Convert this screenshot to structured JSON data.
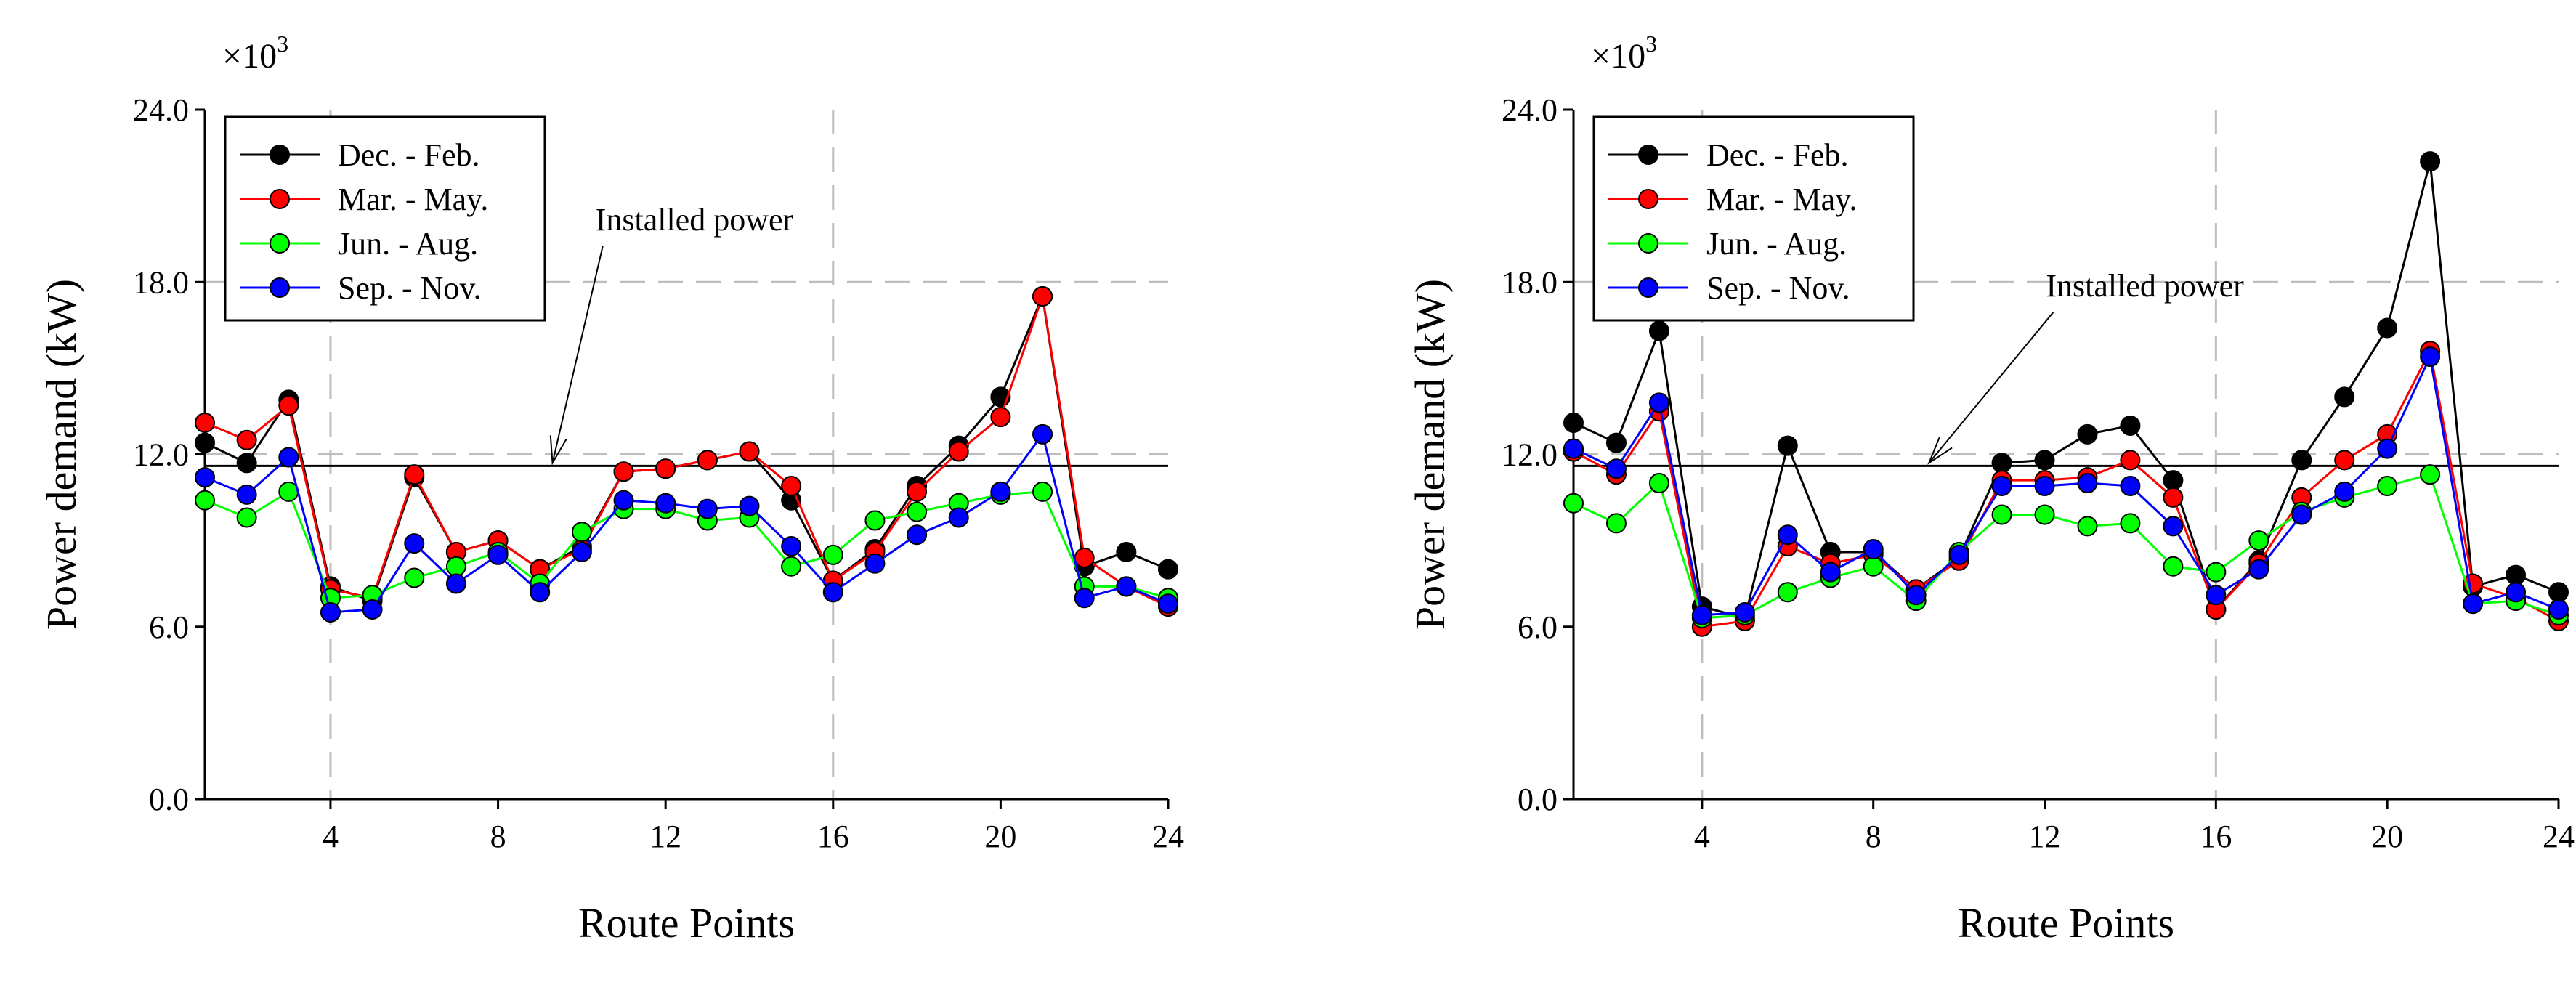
{
  "chart_data": [
    {
      "type": "line",
      "xlabel": "Route Points",
      "ylabel": "Power demand (kW)",
      "y_multiplier": "×10",
      "y_multiplier_exp": "3",
      "xlim": [
        1,
        24
      ],
      "ylim": [
        0,
        24
      ],
      "xticks": [
        4,
        8,
        12,
        16,
        20,
        24
      ],
      "yticks": [
        0.0,
        6.0,
        12.0,
        18.0,
        24.0
      ],
      "ytick_labels": [
        "0.0",
        "6.0",
        "12.0",
        "18.0",
        "24.0"
      ],
      "xtick_labels": [
        "4",
        "8",
        "12",
        "16",
        "20",
        "24"
      ],
      "grid": {
        "vertical_dashed_at": [
          4,
          16
        ],
        "horizontal_dashed_at": [
          12,
          18
        ]
      },
      "legend_position": "top-left",
      "installed_power": 11.6,
      "annotation": {
        "text": "Installed power",
        "points_to_x": 9.3,
        "text_x": 10.5,
        "text_y": 19.6
      },
      "x": [
        1,
        2,
        3,
        4,
        5,
        6,
        7,
        8,
        9,
        10,
        11,
        12,
        13,
        14,
        15,
        16,
        17,
        18,
        19,
        20,
        21,
        22,
        23,
        24
      ],
      "series": [
        {
          "name": "Dec. - Feb.",
          "color": "#000000",
          "values": [
            12.4,
            11.7,
            13.9,
            7.4,
            6.9,
            11.2,
            8.6,
            9.0,
            8.0,
            8.8,
            11.4,
            11.5,
            11.8,
            12.1,
            10.4,
            7.6,
            8.7,
            10.9,
            12.3,
            14.0,
            17.5,
            8.1,
            8.6,
            8.0
          ]
        },
        {
          "name": "Mar. - May.",
          "color": "#ff0000",
          "values": [
            13.1,
            12.5,
            13.7,
            7.3,
            7.0,
            11.3,
            8.6,
            9.0,
            8.0,
            8.7,
            11.4,
            11.5,
            11.8,
            12.1,
            10.9,
            7.6,
            8.6,
            10.7,
            12.1,
            13.3,
            17.5,
            8.4,
            7.4,
            6.7
          ]
        },
        {
          "name": "Jun. - Aug.",
          "color": "#00ff00",
          "values": [
            10.4,
            9.8,
            10.7,
            7.0,
            7.1,
            7.7,
            8.1,
            8.6,
            7.5,
            9.3,
            10.1,
            10.1,
            9.7,
            9.8,
            8.1,
            8.5,
            9.7,
            10.0,
            10.3,
            10.6,
            10.7,
            7.4,
            7.4,
            7.0
          ]
        },
        {
          "name": "Sep. - Nov.",
          "color": "#0000ff",
          "values": [
            11.2,
            10.6,
            11.9,
            6.5,
            6.6,
            8.9,
            7.5,
            8.5,
            7.2,
            8.6,
            10.4,
            10.3,
            10.1,
            10.2,
            8.8,
            7.2,
            8.2,
            9.2,
            9.8,
            10.7,
            12.7,
            7.0,
            7.4,
            6.8
          ]
        }
      ]
    },
    {
      "type": "line",
      "xlabel": "Route Points",
      "ylabel": "Power demand (kW)",
      "y_multiplier": "×10",
      "y_multiplier_exp": "3",
      "xlim": [
        1,
        24
      ],
      "ylim": [
        0,
        24
      ],
      "xticks": [
        4,
        8,
        12,
        16,
        20,
        24
      ],
      "yticks": [
        0.0,
        6.0,
        12.0,
        18.0,
        24.0
      ],
      "ytick_labels": [
        "0.0",
        "6.0",
        "12.0",
        "18.0",
        "24.0"
      ],
      "xtick_labels": [
        "4",
        "8",
        "12",
        "16",
        "20",
        "24"
      ],
      "grid": {
        "vertical_dashed_at": [
          4,
          16
        ],
        "horizontal_dashed_at": [
          12,
          18
        ]
      },
      "legend_position": "top-left",
      "installed_power": 11.6,
      "annotation": {
        "text": "Installed power",
        "points_to_x": 9.3,
        "text_x": 12.2,
        "text_y": 17.3
      },
      "x": [
        1,
        2,
        3,
        4,
        5,
        6,
        7,
        8,
        9,
        10,
        11,
        12,
        13,
        14,
        15,
        16,
        17,
        18,
        19,
        20,
        21,
        22,
        23,
        24
      ],
      "series": [
        {
          "name": "Dec. - Feb.",
          "color": "#000000",
          "values": [
            13.1,
            12.4,
            16.3,
            6.7,
            6.3,
            12.3,
            8.6,
            8.6,
            7.3,
            8.4,
            11.7,
            11.8,
            12.7,
            13.0,
            11.1,
            6.6,
            8.3,
            11.8,
            14.0,
            16.4,
            22.2,
            7.4,
            7.8,
            7.2
          ]
        },
        {
          "name": "Mar. - May.",
          "color": "#ff0000",
          "values": [
            12.1,
            11.3,
            13.5,
            6.0,
            6.2,
            8.8,
            8.2,
            8.5,
            7.3,
            8.3,
            11.1,
            11.1,
            11.2,
            11.8,
            10.5,
            6.6,
            8.2,
            10.5,
            11.8,
            12.7,
            15.6,
            7.5,
            7.0,
            6.2
          ]
        },
        {
          "name": "Jun. - Aug.",
          "color": "#00ff00",
          "values": [
            10.3,
            9.6,
            11.0,
            6.3,
            6.4,
            7.2,
            7.7,
            8.1,
            6.9,
            8.6,
            9.9,
            9.9,
            9.5,
            9.6,
            8.1,
            7.9,
            9.0,
            10.0,
            10.5,
            10.9,
            11.3,
            6.8,
            6.9,
            6.4
          ]
        },
        {
          "name": "Sep. - Nov.",
          "color": "#0000ff",
          "values": [
            12.2,
            11.5,
            13.8,
            6.4,
            6.5,
            9.2,
            7.9,
            8.7,
            7.1,
            8.5,
            10.9,
            10.9,
            11.0,
            10.9,
            9.5,
            7.1,
            8.0,
            9.9,
            10.7,
            12.2,
            15.4,
            6.8,
            7.2,
            6.6
          ]
        }
      ]
    }
  ]
}
